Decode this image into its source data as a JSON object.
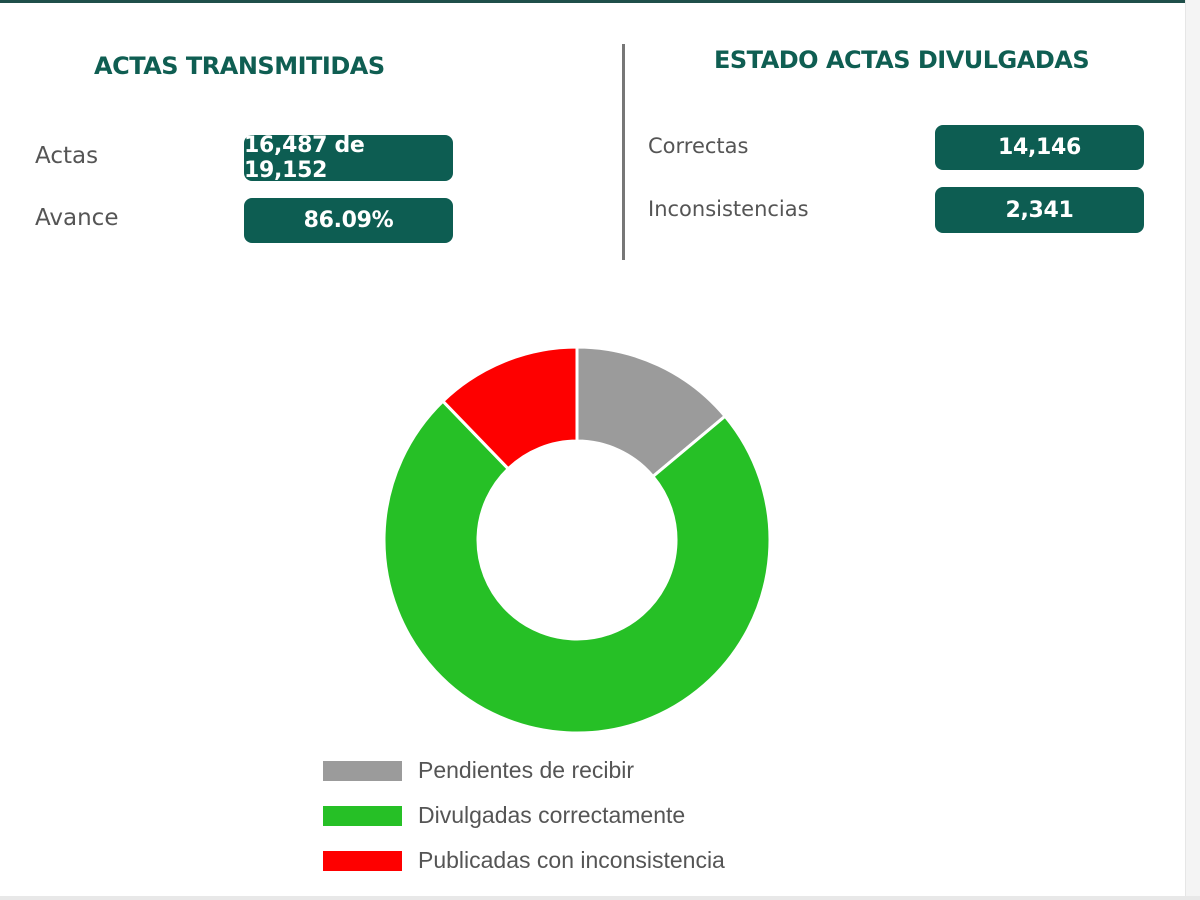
{
  "transmitidas": {
    "title": "ACTAS TRANSMITIDAS",
    "actas_label": "Actas",
    "actas_value": "16,487 de 19,152",
    "avance_label": "Avance",
    "avance_value": "86.09%"
  },
  "divulgadas": {
    "title": "ESTADO ACTAS DIVULGADAS",
    "correctas_label": "Correctas",
    "correctas_value": "14,146",
    "inconsistencias_label": "Inconsistencias",
    "inconsistencias_value": "2,341"
  },
  "chart_data": {
    "type": "pie",
    "donut": true,
    "start": "top, clockwise",
    "legend_position": "bottom",
    "series": [
      {
        "name": "Pendientes de recibir",
        "value": 2665,
        "color": "#9b9b9b"
      },
      {
        "name": "Divulgadas correctamente",
        "value": 14146,
        "color": "#26c026"
      },
      {
        "name": "Publicadas con inconsistencia",
        "value": 2341,
        "color": "#fe0000"
      }
    ]
  },
  "colors": {
    "accent": "#0d5d52",
    "title": "#0f5e52"
  }
}
